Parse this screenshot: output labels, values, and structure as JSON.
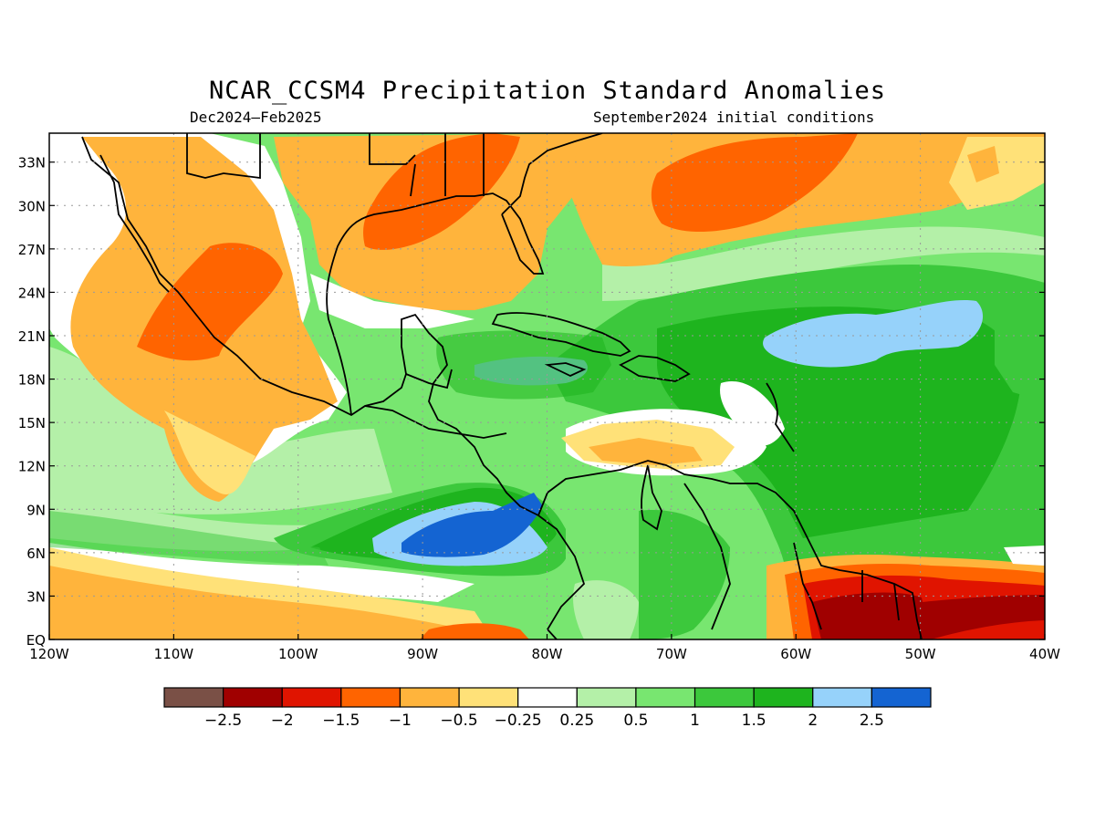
{
  "title": "NCAR_CCSM4 Precipitation Standard Anomalies",
  "subtitle_left": "Dec2024–Feb2025",
  "subtitle_right": "September2024 initial conditions",
  "map": {
    "lon_range": [
      -120,
      -40
    ],
    "lat_range": [
      0,
      35
    ],
    "lon_ticks": [
      {
        "v": -120,
        "label": "120W"
      },
      {
        "v": -110,
        "label": "110W"
      },
      {
        "v": -100,
        "label": "100W"
      },
      {
        "v": -90,
        "label": "90W"
      },
      {
        "v": -80,
        "label": "80W"
      },
      {
        "v": -70,
        "label": "70W"
      },
      {
        "v": -60,
        "label": "60W"
      },
      {
        "v": -50,
        "label": "50W"
      },
      {
        "v": -40,
        "label": "40W"
      }
    ],
    "lat_ticks": [
      {
        "v": 0,
        "label": "EQ"
      },
      {
        "v": 3,
        "label": "3N"
      },
      {
        "v": 6,
        "label": "6N"
      },
      {
        "v": 9,
        "label": "9N"
      },
      {
        "v": 12,
        "label": "12N"
      },
      {
        "v": 15,
        "label": "15N"
      },
      {
        "v": 18,
        "label": "18N"
      },
      {
        "v": 21,
        "label": "21N"
      },
      {
        "v": 24,
        "label": "24N"
      },
      {
        "v": 27,
        "label": "27N"
      },
      {
        "v": 30,
        "label": "30N"
      },
      {
        "v": 33,
        "label": "33N"
      }
    ],
    "grid": true,
    "land_outline_color": "#000000"
  },
  "colorbar": {
    "colors": [
      "#7a5046",
      "#a00000",
      "#e01400",
      "#ff6400",
      "#ffb43c",
      "#ffe178",
      "#ffffff",
      "#b4f0a8",
      "#78e670",
      "#3cc83c",
      "#1eb41e",
      "#96d2fa",
      "#1464d2"
    ],
    "labels": [
      "−2.5",
      "−2",
      "−1.5",
      "−1",
      "−0.5",
      "−0.25",
      "0.25",
      "0.5",
      "1",
      "1.5",
      "2",
      "2.5"
    ]
  }
}
